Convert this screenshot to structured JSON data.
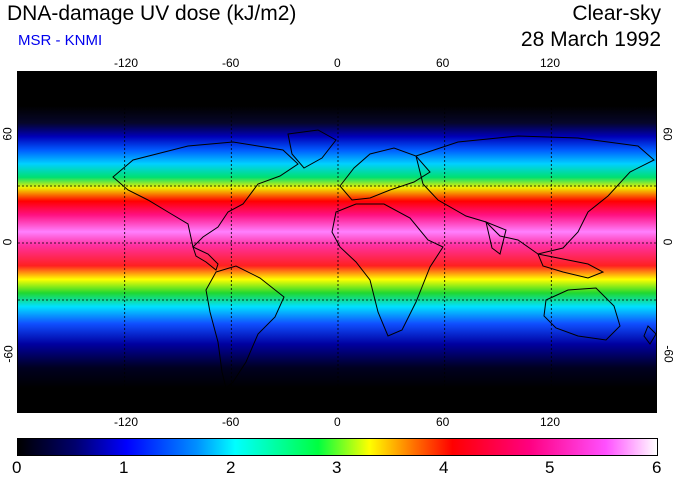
{
  "header": {
    "title": "DNA-damage UV dose (kJ/m2)",
    "subtitle": "MSR - KNMI",
    "condition": "Clear-sky",
    "date": "28 March 1992"
  },
  "map": {
    "lon_ticks_top": [
      "-120",
      "-60",
      "0",
      "60",
      "120"
    ],
    "lon_ticks_bottom": [
      "-120",
      "-60",
      "0",
      "60",
      "120"
    ],
    "lat_ticks_left": [
      "60",
      "0",
      "-60"
    ],
    "lat_ticks_right": [
      "60",
      "0",
      "-60"
    ],
    "lon_range": [
      -180,
      180
    ],
    "lat_range": [
      -90,
      90
    ],
    "gridlines": {
      "longitudes": [
        -120,
        -60,
        0,
        60,
        120
      ],
      "latitudes": [
        -30,
        0,
        30
      ]
    },
    "grid_style": "dashed"
  },
  "colorbar": {
    "ticks": [
      "0",
      "1",
      "2",
      "3",
      "4",
      "5",
      "6"
    ],
    "min": 0,
    "max": 6,
    "colors": [
      "#000000",
      "#0000ff",
      "#00ffff",
      "#00ff40",
      "#ffff00",
      "#ff0000",
      "#ff0080",
      "#ff50ff",
      "#ffffff"
    ]
  }
}
